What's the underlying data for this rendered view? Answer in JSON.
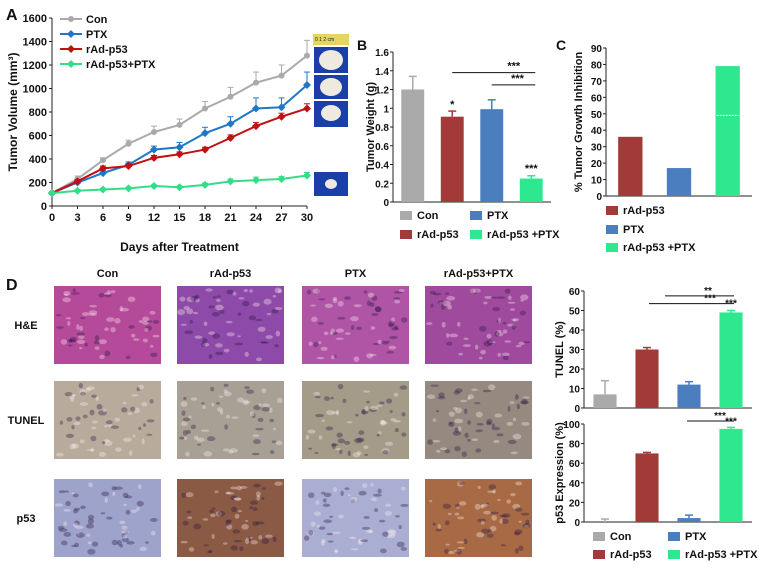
{
  "panel_letters": {
    "a": "A",
    "b": "B",
    "c": "C",
    "d": "D"
  },
  "colors": {
    "con": "#aaaaaa",
    "ptx": "#4a7ebf",
    "rad": "#a33a3a",
    "combo": "#2ee88f",
    "combo_line": "#33dd88",
    "ptx_line": "#1f77c8",
    "rad_line": "#c01010"
  },
  "scale_bar_text": "0   1   2 cm",
  "chart_data": [
    {
      "id": "A",
      "type": "line",
      "xlabel": "Days after Treatment",
      "ylabel": "Tumor Volume (mm³)",
      "xlim": [
        0,
        30
      ],
      "ylim": [
        0,
        1600
      ],
      "x_ticks": [
        0,
        3,
        6,
        9,
        12,
        15,
        18,
        21,
        24,
        27,
        30
      ],
      "y_ticks": [
        0,
        200,
        400,
        600,
        800,
        1000,
        1200,
        1400,
        1600
      ],
      "x": [
        0,
        3,
        6,
        9,
        12,
        15,
        18,
        21,
        24,
        27,
        30
      ],
      "series": [
        {
          "name": "Con",
          "color": "#aaaaaa",
          "values": [
            110,
            230,
            390,
            530,
            630,
            690,
            830,
            930,
            1050,
            1110,
            1280
          ],
          "err": [
            10,
            25,
            20,
            30,
            50,
            50,
            60,
            80,
            90,
            90,
            130
          ]
        },
        {
          "name": "PTX",
          "color": "#1f77c8",
          "values": [
            110,
            200,
            280,
            350,
            480,
            500,
            620,
            700,
            830,
            840,
            1030
          ],
          "err": [
            10,
            20,
            20,
            25,
            30,
            40,
            50,
            60,
            90,
            80,
            110
          ]
        },
        {
          "name": "rAd-p53",
          "color": "#c01010",
          "values": [
            110,
            210,
            320,
            340,
            410,
            440,
            480,
            580,
            680,
            760,
            830
          ],
          "err": [
            10,
            15,
            20,
            20,
            20,
            20,
            20,
            25,
            30,
            30,
            40
          ]
        },
        {
          "name": "rAd-p53+PTX",
          "color": "#33dd88",
          "values": [
            110,
            130,
            140,
            150,
            170,
            160,
            180,
            210,
            220,
            230,
            260
          ],
          "err": [
            10,
            10,
            10,
            10,
            10,
            10,
            15,
            20,
            25,
            20,
            25
          ]
        }
      ]
    },
    {
      "id": "B",
      "type": "bar",
      "ylabel": "Tumor Weight (g)",
      "ylim": [
        0,
        1.6
      ],
      "y_ticks": [
        "0",
        "0.2",
        "0.4",
        "0.6",
        "0.8",
        "1",
        "1.2",
        "1.4",
        "1.6"
      ],
      "categories": [
        "Con",
        "rAd-p53",
        "PTX",
        "rAd-p53 +PTX"
      ],
      "values": [
        1.2,
        0.91,
        0.99,
        0.25
      ],
      "err": [
        0.14,
        0.06,
        0.1,
        0.03
      ],
      "colors": [
        "#aaaaaa",
        "#a33a3a",
        "#4a7ebf",
        "#2ee88f"
      ],
      "annotations": [
        "*",
        "***",
        "***",
        "***"
      ],
      "legend": [
        "Con",
        "PTX",
        "rAd-p53",
        "rAd-p53 +PTX"
      ]
    },
    {
      "id": "C",
      "type": "bar",
      "ylabel": "% Tumor Growth Inhibition",
      "ylim": [
        0,
        90
      ],
      "y_ticks": [
        0,
        10,
        20,
        30,
        40,
        50,
        60,
        70,
        80,
        90
      ],
      "categories": [
        "rAd-p53",
        "PTX",
        "rAd-p53 +PTX"
      ],
      "values": [
        36,
        17,
        79
      ],
      "colors": [
        "#a33a3a",
        "#4a7ebf",
        "#2ee88f"
      ],
      "legend": [
        "rAd-p53",
        "PTX",
        "rAd-p53 +PTX"
      ]
    },
    {
      "id": "D-TUNEL",
      "type": "bar",
      "ylabel": "TUNEL (%)",
      "ylim": [
        0,
        60
      ],
      "y_ticks": [
        0,
        10,
        20,
        30,
        40,
        50,
        60
      ],
      "categories": [
        "Con",
        "rAd-p53",
        "PTX",
        "rAd-p53 +PTX"
      ],
      "values": [
        7,
        30,
        12,
        49
      ],
      "err": [
        7,
        1,
        1.5,
        1
      ],
      "colors": [
        "#aaaaaa",
        "#a33a3a",
        "#4a7ebf",
        "#2ee88f"
      ],
      "annotations": [
        "**",
        "***",
        "***"
      ]
    },
    {
      "id": "D-p53",
      "type": "bar",
      "ylabel": "p53 Expression (%)",
      "ylim": [
        0,
        100
      ],
      "y_ticks": [
        0,
        20,
        40,
        60,
        80,
        100
      ],
      "categories": [
        "Con",
        "rAd-p53",
        "PTX",
        "rAd-p53 +PTX"
      ],
      "values": [
        0,
        70,
        4,
        95
      ],
      "err": [
        3,
        1,
        3,
        1.5
      ],
      "colors": [
        "#aaaaaa",
        "#a33a3a",
        "#4a7ebf",
        "#2ee88f"
      ],
      "annotations": [
        "***",
        "***"
      ],
      "legend": [
        "Con",
        "PTX",
        "rAd-p53",
        "rAd-p53 +PTX"
      ]
    }
  ],
  "micro": {
    "col_labels": [
      "Con",
      "rAd-p53",
      "PTX",
      "rAd-p53+PTX"
    ],
    "row_labels": [
      "H&E",
      "TUNEL",
      "p53"
    ],
    "tones": [
      [
        "#b64a9a",
        "#8e4aa8",
        "#b055a6",
        "#a04a9e"
      ],
      [
        "#b8ab9c",
        "#a8a094",
        "#a49c88",
        "#968a80"
      ],
      [
        "#9ea3cc",
        "#8a5a44",
        "#a9aed2",
        "#a86a44"
      ]
    ]
  }
}
